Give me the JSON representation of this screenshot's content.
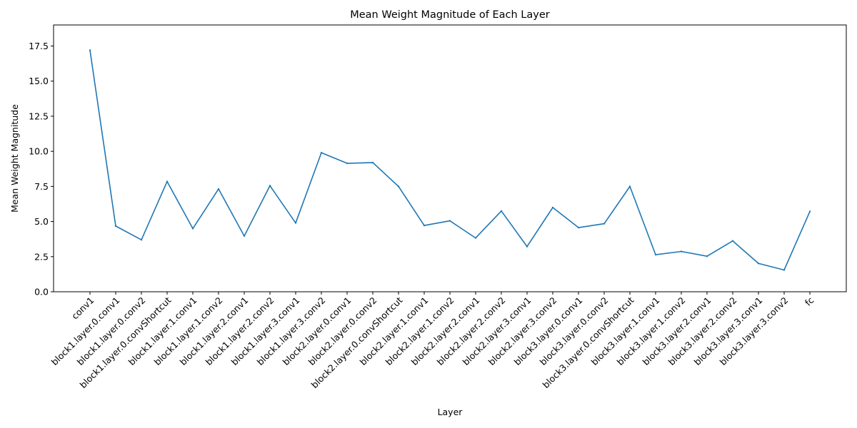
{
  "chart_data": {
    "type": "line",
    "title": "Mean Weight Magnitude of Each Layer",
    "xlabel": "Layer",
    "ylabel": "Mean Weight Magnitude",
    "categories": [
      "conv1",
      "block1.layer.0.conv1",
      "block1.layer.0.conv2",
      "block1.layer.0.convShortcut",
      "block1.layer.1.conv1",
      "block1.layer.1.conv2",
      "block1.layer.2.conv1",
      "block1.layer.2.conv2",
      "block1.layer.3.conv1",
      "block1.layer.3.conv2",
      "block2.layer.0.conv1",
      "block2.layer.0.conv2",
      "block2.layer.0.convShortcut",
      "block2.layer.1.conv1",
      "block2.layer.1.conv2",
      "block2.layer.2.conv1",
      "block2.layer.2.conv2",
      "block2.layer.3.conv1",
      "block2.layer.3.conv2",
      "block3.layer.0.conv1",
      "block3.layer.0.conv2",
      "block3.layer.0.convShortcut",
      "block3.layer.1.conv1",
      "block3.layer.1.conv2",
      "block3.layer.2.conv1",
      "block3.layer.2.conv2",
      "block3.layer.3.conv1",
      "block3.layer.3.conv2",
      "fc"
    ],
    "values": [
      17.2,
      4.68,
      3.7,
      7.85,
      4.5,
      7.32,
      3.97,
      7.55,
      4.9,
      9.9,
      9.15,
      9.2,
      7.5,
      4.72,
      5.05,
      3.83,
      5.75,
      3.22,
      6.0,
      4.57,
      4.85,
      7.5,
      2.64,
      2.87,
      2.53,
      3.62,
      2.02,
      1.55,
      5.72
    ],
    "yticks": [
      "0.0",
      "2.5",
      "5.0",
      "7.5",
      "10.0",
      "12.5",
      "15.0",
      "17.5"
    ],
    "ylim": [
      0,
      19
    ],
    "grid": false,
    "line_color": "#1f77b4"
  }
}
